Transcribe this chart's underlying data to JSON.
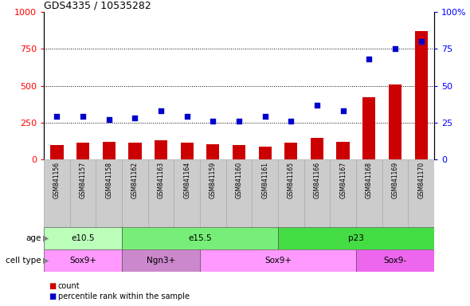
{
  "title": "GDS4335 / 10535282",
  "samples": [
    "GSM841156",
    "GSM841157",
    "GSM841158",
    "GSM841162",
    "GSM841163",
    "GSM841164",
    "GSM841159",
    "GSM841160",
    "GSM841161",
    "GSM841165",
    "GSM841166",
    "GSM841167",
    "GSM841168",
    "GSM841169",
    "GSM841170"
  ],
  "counts": [
    100,
    112,
    118,
    112,
    130,
    115,
    103,
    98,
    88,
    112,
    148,
    118,
    420,
    510,
    870
  ],
  "percentiles": [
    29,
    29,
    27,
    28,
    33,
    29,
    26,
    26,
    29,
    26,
    37,
    33,
    68,
    75,
    80
  ],
  "age_groups": [
    {
      "label": "e10.5",
      "start": 0,
      "end": 3,
      "color": "#bbffbb"
    },
    {
      "label": "e15.5",
      "start": 3,
      "end": 9,
      "color": "#77ee77"
    },
    {
      "label": "p23",
      "start": 9,
      "end": 15,
      "color": "#44dd44"
    }
  ],
  "cell_groups": [
    {
      "label": "Sox9+",
      "start": 0,
      "end": 3,
      "color": "#ff99ff"
    },
    {
      "label": "Ngn3+",
      "start": 3,
      "end": 6,
      "color": "#cc88cc"
    },
    {
      "label": "Sox9+",
      "start": 6,
      "end": 12,
      "color": "#ff99ff"
    },
    {
      "label": "Sox9-",
      "start": 12,
      "end": 15,
      "color": "#ee66ee"
    }
  ],
  "bar_color": "#cc0000",
  "dot_color": "#0000cc",
  "left_ylim": [
    0,
    1000
  ],
  "right_ylim": [
    0,
    100
  ],
  "left_yticks": [
    0,
    250,
    500,
    750,
    1000
  ],
  "right_yticks": [
    0,
    25,
    50,
    75,
    100
  ],
  "grid_vals": [
    250,
    500,
    750
  ],
  "sample_bg": "#cccccc",
  "sample_font": 5.5,
  "annotation_font": 7.5,
  "title_fontsize": 9
}
